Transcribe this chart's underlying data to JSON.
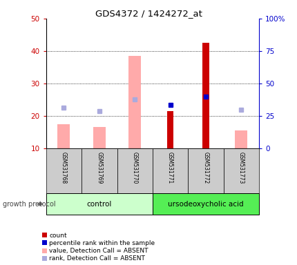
{
  "title": "GDS4372 / 1424272_at",
  "samples": [
    "GSM531768",
    "GSM531769",
    "GSM531770",
    "GSM531771",
    "GSM531772",
    "GSM531773"
  ],
  "ylim_left": [
    10,
    50
  ],
  "ylim_right": [
    0,
    100
  ],
  "yticks_left": [
    10,
    20,
    30,
    40,
    50
  ],
  "yticks_right": [
    0,
    25,
    50,
    75,
    100
  ],
  "ytick_labels_right": [
    "0",
    "25",
    "50",
    "75",
    "100%"
  ],
  "pink_bars": [
    17.5,
    16.5,
    38.5,
    null,
    null,
    15.5
  ],
  "red_bars": [
    null,
    null,
    null,
    21.5,
    42.5,
    null
  ],
  "light_blue_squares": [
    22.5,
    21.5,
    25.0,
    null,
    null,
    22.0
  ],
  "blue_squares": [
    null,
    null,
    null,
    23.5,
    26.0,
    null
  ],
  "pink_bar_color": "#ffaaaa",
  "red_bar_color": "#cc0000",
  "blue_square_color": "#0000cc",
  "light_blue_square_color": "#aaaadd",
  "sample_box_color": "#cccccc",
  "y_label_color_left": "#cc0000",
  "y_label_color_right": "#0000cc",
  "growth_protocol_label": "growth protocol",
  "group_label_control": "control",
  "group_label_treatment": "ursodeoxycholic acid",
  "control_color": "#ccffcc",
  "treatment_color": "#55ee55",
  "legend_items": [
    {
      "label": "count",
      "color": "#cc0000"
    },
    {
      "label": "percentile rank within the sample",
      "color": "#0000cc"
    },
    {
      "label": "value, Detection Call = ABSENT",
      "color": "#ffaaaa"
    },
    {
      "label": "rank, Detection Call = ABSENT",
      "color": "#aaaadd"
    }
  ]
}
